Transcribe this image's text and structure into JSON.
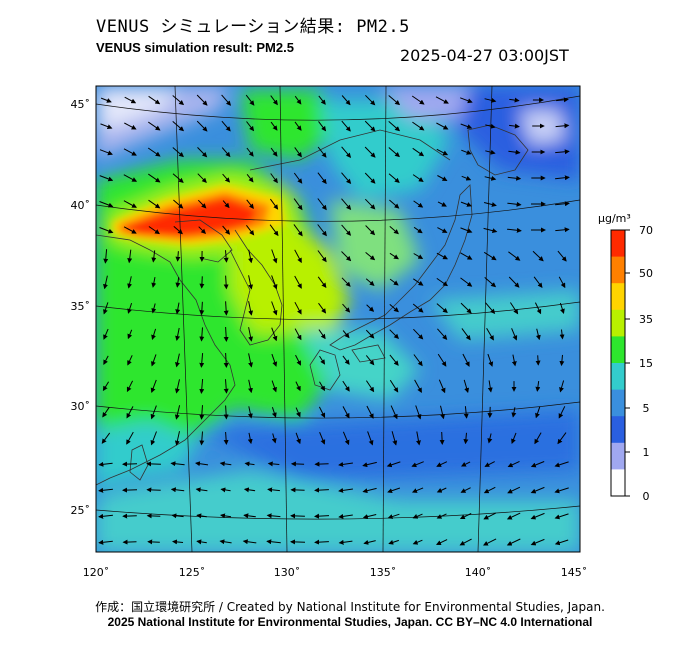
{
  "header": {
    "title_ja": "VENUS シミュレーション結果: PM2.5",
    "title_en": "VENUS simulation result: PM2.5",
    "timestamp": "2025-04-27 03:00JST"
  },
  "map": {
    "lon_labels": [
      "120˚",
      "125˚",
      "130˚",
      "135˚",
      "140˚",
      "145˚"
    ],
    "lat_labels": [
      "45˚",
      "40˚",
      "35˚",
      "30˚",
      "25˚"
    ],
    "background_color": "#3a8fdd"
  },
  "colorbar": {
    "unit": "μg/m³",
    "tick_labels": [
      "70",
      "50",
      "35",
      "15",
      "5",
      "1",
      "0"
    ],
    "colors": [
      "#ff2a00",
      "#ff8000",
      "#ffd400",
      "#b8f000",
      "#2ee62e",
      "#33cccc",
      "#3a8fdd",
      "#2a5fe0",
      "#a0a8f0",
      "#ffffff"
    ]
  },
  "footer": {
    "credit_line": "作成：国立環境研究所 / Created by National Institute for Environmental Studies, Japan.",
    "copyright_line": "2025 National Institute for Environmental Studies, Japan. CC BY–NC 4.0 International"
  }
}
